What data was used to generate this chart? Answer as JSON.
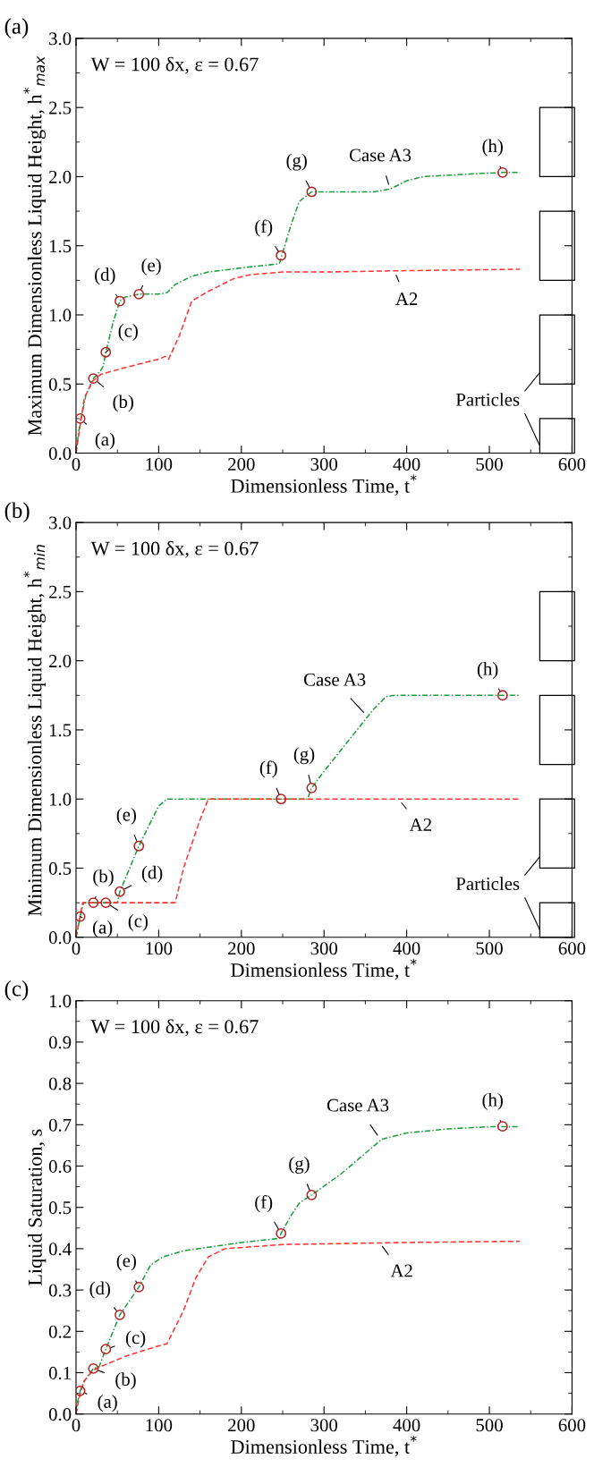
{
  "chart_data": [
    {
      "type": "line",
      "title": "(a)",
      "xlabel": "Dimensionless Time, t$^{*}$",
      "ylabel": "Maximum Dimensionless Liquid Height, h$^{*}$$_{max}$",
      "xlim": [
        0,
        600
      ],
      "xticks": [
        0,
        100,
        200,
        300,
        400,
        500,
        600
      ],
      "ylim": [
        0,
        3.0
      ],
      "yticks": [
        {
          "value": 0,
          "label": "0.0"
        },
        0.5,
        {
          "value": 1,
          "label": "1.0"
        },
        1.5,
        {
          "value": 2,
          "label": "2.0"
        },
        2.5,
        {
          "value": 3,
          "label": "3.0"
        }
      ],
      "grid": false,
      "legend": false,
      "series": [
        {
          "color": "#1a9e3a",
          "line_style": "dashdot",
          "x": [
            0,
            3,
            6,
            12,
            21,
            30,
            33,
            36,
            45,
            53,
            60,
            76,
            100,
            110,
            120,
            140,
            160,
            200,
            246,
            249,
            260,
            270,
            285,
            360,
            380,
            400,
            420,
            480,
            516,
            537
          ],
          "values": [
            0,
            0.15,
            0.25,
            0.42,
            0.54,
            0.6,
            0.63,
            0.73,
            0.95,
            1.1,
            1.13,
            1.15,
            1.15,
            1.16,
            1.22,
            1.28,
            1.31,
            1.34,
            1.37,
            1.43,
            1.65,
            1.82,
            1.89,
            1.89,
            1.91,
            1.97,
            2.0,
            2.02,
            2.03,
            2.03
          ]
        },
        {
          "color": "#ff3333",
          "line_style": "dashed",
          "x": [
            0,
            5,
            10,
            20,
            30,
            60,
            100,
            108,
            112,
            125,
            140,
            160,
            190,
            210,
            250,
            300,
            400,
            537
          ],
          "values": [
            0,
            0.2,
            0.4,
            0.52,
            0.57,
            0.62,
            0.68,
            0.7,
            0.68,
            0.85,
            1.1,
            1.17,
            1.26,
            1.29,
            1.31,
            1.31,
            1.32,
            1.33
          ]
        },
        {
          "type": "scatter",
          "color": "#b22222",
          "marker": "circle",
          "x": [
            5,
            21,
            36,
            53,
            76,
            248,
            285,
            516
          ],
          "values": [
            0.25,
            0.54,
            0.73,
            1.1,
            1.15,
            1.43,
            1.89,
            2.03
          ]
        }
      ],
      "annotations": [
        {
          "text": "(a)",
          "x": 5,
          "y": 0.25
        },
        {
          "text": "(b)",
          "x": 21,
          "y": 0.54
        },
        {
          "text": "(c)",
          "x": 36,
          "y": 0.73
        },
        {
          "text": "(d)",
          "x": 53,
          "y": 1.1
        },
        {
          "text": "(e)",
          "x": 76,
          "y": 1.15
        },
        {
          "text": "(f)",
          "x": 248,
          "y": 1.43
        },
        {
          "text": "(g)",
          "x": 285,
          "y": 1.89
        },
        {
          "text": "(h)",
          "x": 516,
          "y": 2.03
        },
        {
          "text": "Case A3",
          "x": 380,
          "y": 1.91
        },
        {
          "text": "A2",
          "x": 385,
          "y": 1.32
        },
        "W = 100 δx, ε = 0.67",
        "Particles"
      ]
    },
    {
      "type": "line",
      "title": "(b)",
      "xlabel": "Dimensionless Time, t$^{*}$",
      "ylabel": "Minimum Dimensionless Liquid Height, h$^{*}$$_{min}$",
      "xlim": [
        0,
        600
      ],
      "xticks": [
        0,
        100,
        200,
        300,
        400,
        500,
        600
      ],
      "ylim": [
        0,
        3.0
      ],
      "yticks": [
        {
          "value": 0,
          "label": "0.0"
        },
        0.5,
        {
          "value": 1,
          "label": "1.0"
        },
        1.5,
        {
          "value": 2,
          "label": "2.0"
        },
        2.5,
        {
          "value": 3,
          "label": "3.0"
        }
      ],
      "grid": false,
      "legend": false,
      "series": [
        {
          "color": "#1a9e3a",
          "line_style": "dashdot",
          "x": [
            0,
            5,
            9,
            50,
            53,
            76,
            100,
            110,
            280,
            285,
            300,
            360,
            375,
            385,
            537
          ],
          "values": [
            0,
            0.15,
            0.25,
            0.25,
            0.33,
            0.66,
            0.95,
            1.0,
            1.0,
            1.08,
            1.2,
            1.65,
            1.74,
            1.75,
            1.75
          ]
        },
        {
          "color": "#ff3333",
          "line_style": "dashed",
          "x": [
            0,
            8,
            120,
            130,
            150,
            160,
            537
          ],
          "values": [
            0,
            0.25,
            0.25,
            0.5,
            0.85,
            1.0,
            1.0
          ]
        },
        {
          "type": "scatter",
          "color": "#b22222",
          "marker": "circle",
          "x": [
            5,
            21,
            36,
            53,
            76,
            248,
            285,
            516
          ],
          "values": [
            0.15,
            0.25,
            0.25,
            0.33,
            0.66,
            1.0,
            1.08,
            1.75
          ]
        }
      ],
      "annotations": [
        {
          "text": "(a)",
          "x": 5,
          "y": 0.15
        },
        {
          "text": "(b)",
          "x": 21,
          "y": 0.25
        },
        {
          "text": "(c)",
          "x": 36,
          "y": 0.25
        },
        {
          "text": "(d)",
          "x": 53,
          "y": 0.33
        },
        {
          "text": "(e)",
          "x": 76,
          "y": 0.66
        },
        {
          "text": "(f)",
          "x": 248,
          "y": 1.0
        },
        {
          "text": "(g)",
          "x": 285,
          "y": 1.08
        },
        {
          "text": "(h)",
          "x": 516,
          "y": 1.75
        },
        {
          "text": "Case A3",
          "x": 352,
          "y": 1.6
        },
        {
          "text": "A2",
          "x": 390,
          "y": 1.0
        },
        "W = 100 δx, ε = 0.67",
        "Particles"
      ]
    },
    {
      "type": "line",
      "title": "(c)",
      "xlabel": "Dimensionless Time, t$^{*}$",
      "ylabel": "Liquid Saturation, s",
      "xlim": [
        0,
        600
      ],
      "xticks": [
        0,
        100,
        200,
        300,
        400,
        500,
        600
      ],
      "ylim": [
        0,
        1.0
      ],
      "yticks": [
        {
          "value": 0,
          "label": "0.0"
        },
        0.1,
        0.2,
        0.3,
        0.4,
        0.5,
        0.6,
        0.7,
        0.8,
        0.9,
        {
          "value": 1,
          "label": "1.0"
        }
      ],
      "grid": false,
      "legend": false,
      "series": [
        {
          "color": "#1a9e3a",
          "line_style": "dashdot",
          "x": [
            0,
            2,
            5,
            10,
            21,
            28,
            36,
            53,
            76,
            90,
            105,
            130,
            200,
            246,
            248,
            260,
            270,
            285,
            320,
            370,
            400,
            450,
            500,
            537
          ],
          "values": [
            0,
            0.03,
            0.056,
            0.08,
            0.11,
            0.115,
            0.157,
            0.24,
            0.307,
            0.36,
            0.38,
            0.395,
            0.415,
            0.425,
            0.437,
            0.48,
            0.51,
            0.53,
            0.58,
            0.665,
            0.68,
            0.69,
            0.695,
            0.695
          ]
        },
        {
          "color": "#ff3333",
          "line_style": "dashed",
          "x": [
            0,
            5,
            10,
            20,
            30,
            60,
            100,
            110,
            130,
            145,
            160,
            180,
            250,
            400,
            537
          ],
          "values": [
            0,
            0.05,
            0.08,
            0.105,
            0.115,
            0.14,
            0.165,
            0.17,
            0.25,
            0.33,
            0.38,
            0.4,
            0.41,
            0.415,
            0.418
          ]
        },
        {
          "type": "scatter",
          "color": "#b22222",
          "marker": "circle",
          "x": [
            5,
            21,
            36,
            53,
            76,
            248,
            285,
            516
          ],
          "values": [
            0.056,
            0.11,
            0.157,
            0.24,
            0.307,
            0.437,
            0.53,
            0.696
          ]
        }
      ],
      "annotations": [
        {
          "text": "(a)",
          "x": 5,
          "y": 0.056
        },
        {
          "text": "(b)",
          "x": 21,
          "y": 0.11
        },
        {
          "text": "(c)",
          "x": 36,
          "y": 0.157
        },
        {
          "text": "(d)",
          "x": 53,
          "y": 0.24
        },
        {
          "text": "(e)",
          "x": 76,
          "y": 0.307
        },
        {
          "text": "(f)",
          "x": 248,
          "y": 0.437
        },
        {
          "text": "(g)",
          "x": 285,
          "y": 0.53
        },
        {
          "text": "(h)",
          "x": 516,
          "y": 0.696
        },
        {
          "text": "Case A3",
          "x": 368,
          "y": 0.665
        },
        {
          "text": "A2",
          "x": 367,
          "y": 0.415
        },
        "W = 100 δx, ε = 0.67"
      ]
    }
  ]
}
